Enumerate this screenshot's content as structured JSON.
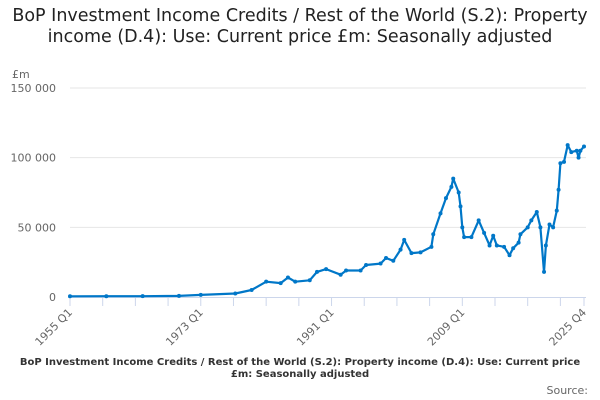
{
  "chart_data": {
    "type": "line",
    "title": "BoP Investment Income Credits / Rest of the World (S.2): Property income (D.4): Use: Current price £m: Seasonally adjusted",
    "caption": "BoP Investment Income Credits / Rest of the World (S.2): Property income (D.4): Use: Current price £m: Seasonally adjusted",
    "source_label": "Source:",
    "ylabel": "£m",
    "xlabel": "",
    "ylim": [
      0,
      150000
    ],
    "yticks": [
      0,
      50000,
      100000,
      150000
    ],
    "ytick_labels": [
      "0",
      "50 000",
      "100 000",
      "150 000"
    ],
    "xrange": [
      "1955 Q1",
      "2025 Q4"
    ],
    "xtick_labels": [
      "1955 Q1",
      "1973 Q1",
      "1991 Q1",
      "2009 Q1",
      "2025 Q4"
    ],
    "grid": true,
    "color": "#0077c8",
    "points": [
      [
        "1955 Q1",
        500
      ],
      [
        "1960 Q1",
        550
      ],
      [
        "1965 Q1",
        600
      ],
      [
        "1970 Q1",
        800
      ],
      [
        "1973 Q1",
        1500
      ],
      [
        "1977 Q4",
        2500
      ],
      [
        "1980 Q1",
        5000
      ],
      [
        "1982 Q1",
        11000
      ],
      [
        "1984 Q1",
        10000
      ],
      [
        "1985 Q1",
        14000
      ],
      [
        "1986 Q1",
        11000
      ],
      [
        "1988 Q1",
        12000
      ],
      [
        "1989 Q1",
        18000
      ],
      [
        "1990 Q2",
        20000
      ],
      [
        "1992 Q2",
        16000
      ],
      [
        "1993 Q1",
        19000
      ],
      [
        "1995 Q1",
        19000
      ],
      [
        "1995 Q4",
        23000
      ],
      [
        "1997 Q4",
        24000
      ],
      [
        "1998 Q3",
        28000
      ],
      [
        "1999 Q3",
        26000
      ],
      [
        "2000 Q3",
        34000
      ],
      [
        "2001 Q1",
        41000
      ],
      [
        "2002 Q1",
        31500
      ],
      [
        "2003 Q2",
        32000
      ],
      [
        "2004 Q4",
        36000
      ],
      [
        "2005 Q1",
        45000
      ],
      [
        "2006 Q1",
        60000
      ],
      [
        "2006 Q4",
        71000
      ],
      [
        "2007 Q3",
        79000
      ],
      [
        "2007 Q4",
        85000
      ],
      [
        "2008 Q3",
        75000
      ],
      [
        "2008 Q4",
        65000
      ],
      [
        "2009 Q1",
        50000
      ],
      [
        "2009 Q2",
        43000
      ],
      [
        "2010 Q2",
        43000
      ],
      [
        "2011 Q2",
        55000
      ],
      [
        "2012 Q1",
        46000
      ],
      [
        "2012 Q4",
        37000
      ],
      [
        "2013 Q2",
        44000
      ],
      [
        "2013 Q4",
        37000
      ],
      [
        "2014 Q4",
        36000
      ],
      [
        "2015 Q3",
        30000
      ],
      [
        "2016 Q1",
        35000
      ],
      [
        "2016 Q4",
        39000
      ],
      [
        "2017 Q1",
        45000
      ],
      [
        "2018 Q1",
        50000
      ],
      [
        "2018 Q3",
        55000
      ],
      [
        "2019 Q2",
        61000
      ],
      [
        "2019 Q4",
        50000
      ],
      [
        "2020 Q2",
        18000
      ],
      [
        "2020 Q3",
        37000
      ],
      [
        "2021 Q1",
        52000
      ],
      [
        "2021 Q3",
        50000
      ],
      [
        "2022 Q1",
        62000
      ],
      [
        "2022 Q2",
        77000
      ],
      [
        "2022 Q3",
        96000
      ],
      [
        "2023 Q1",
        97000
      ],
      [
        "2023 Q3",
        109000
      ],
      [
        "2024 Q1",
        104000
      ],
      [
        "2024 Q4",
        105000
      ],
      [
        "2025 Q1",
        100000
      ],
      [
        "2025 Q2",
        105000
      ],
      [
        "2025 Q4",
        108000
      ]
    ]
  }
}
